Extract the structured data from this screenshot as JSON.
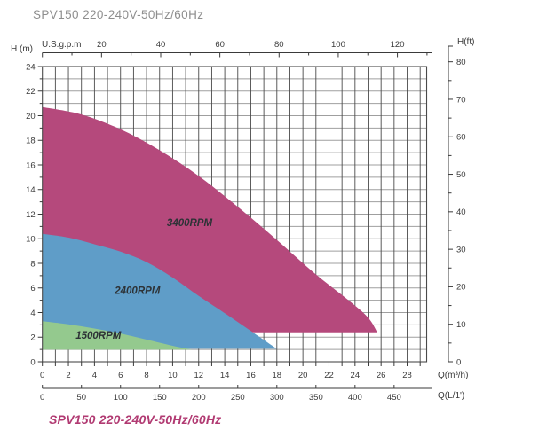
{
  "page": {
    "title": "SPV150 220-240V-50Hz/60Hz",
    "footer": "SPV150  220-240V-50Hz/60Hz"
  },
  "chart_data": {
    "type": "area",
    "title": "SPV150 220-240V-50Hz/60Hz",
    "subtitle": "SPV150  220-240V-50Hz/60Hz",
    "grid": true,
    "legend_position": "in-region-labels",
    "colors": {
      "grid_vertical": "#4a4a4a",
      "grid_horizontal": "#9f9f9f",
      "axis": "#3a3a3a",
      "title_text": "#8e8e8e",
      "footer_text": "#b13a72",
      "region_label_text": "#2d3236"
    },
    "axes": {
      "x_m3h": {
        "label": "Q(m³/h)",
        "min": 0,
        "max": 29.5,
        "minor_step": 1,
        "tick_labels": [
          0,
          2,
          4,
          6,
          8,
          10,
          12,
          14,
          16,
          18,
          20,
          22,
          24,
          26,
          28
        ]
      },
      "x_lmin": {
        "label": "Q(L/1')",
        "m3h_per_lmin": 0.06,
        "tick_labels": [
          0,
          50,
          100,
          150,
          200,
          250,
          300,
          350,
          400,
          450
        ]
      },
      "x_gpm": {
        "label": "U.S.g.p.m",
        "m3h_per_gpm": 0.22712,
        "minor_step_gpm": 10,
        "minor_max_gpm": 130,
        "tick_labels": [
          20,
          40,
          60,
          80,
          100,
          120
        ]
      },
      "y_m": {
        "label": "H (m)",
        "min": 0,
        "max": 24,
        "minor_step": 1,
        "tick_labels": [
          0,
          2,
          4,
          6,
          8,
          10,
          12,
          14,
          16,
          18,
          20,
          22,
          24
        ]
      },
      "y_ft": {
        "label": "H(ft)",
        "m_per_ft": 0.3048,
        "minor_step_ft": 5,
        "minor_max_ft": 75,
        "tick_labels": [
          0,
          10,
          20,
          30,
          40,
          50,
          60,
          70,
          80
        ]
      }
    },
    "series": [
      {
        "name": "3400RPM",
        "color": "#b5497c",
        "bottom_h": 2.4,
        "curve": [
          [
            0,
            20.7
          ],
          [
            3,
            20.1
          ],
          [
            6,
            18.9
          ],
          [
            9,
            17.2
          ],
          [
            12,
            15.1
          ],
          [
            15,
            12.6
          ],
          [
            18,
            9.9
          ],
          [
            21,
            7.1
          ],
          [
            23.5,
            5.0
          ],
          [
            25.0,
            3.6
          ],
          [
            25.7,
            2.4
          ]
        ]
      },
      {
        "name": "2400RPM",
        "color": "#5f9dc8",
        "bottom_h": 1.05,
        "curve": [
          [
            0,
            10.4
          ],
          [
            2,
            10.1
          ],
          [
            4,
            9.55
          ],
          [
            6,
            8.95
          ],
          [
            8,
            8.1
          ],
          [
            10,
            6.85
          ],
          [
            12,
            5.35
          ],
          [
            14,
            3.95
          ],
          [
            16,
            2.5
          ],
          [
            18,
            1.05
          ]
        ]
      },
      {
        "name": "1500RPM",
        "color": "#94c98e",
        "bottom_h": 0.98,
        "curve": [
          [
            0,
            3.3
          ],
          [
            2,
            3.05
          ],
          [
            4,
            2.7
          ],
          [
            6,
            2.3
          ],
          [
            8,
            1.8
          ],
          [
            10,
            1.3
          ],
          [
            11.5,
            0.98
          ]
        ]
      }
    ],
    "region_labels": [
      {
        "text": "3400RPM",
        "q": 11.3,
        "h": 11.3
      },
      {
        "text": "2400RPM",
        "q": 7.3,
        "h": 5.8
      },
      {
        "text": "1500RPM",
        "q": 4.3,
        "h": 2.15
      }
    ]
  }
}
